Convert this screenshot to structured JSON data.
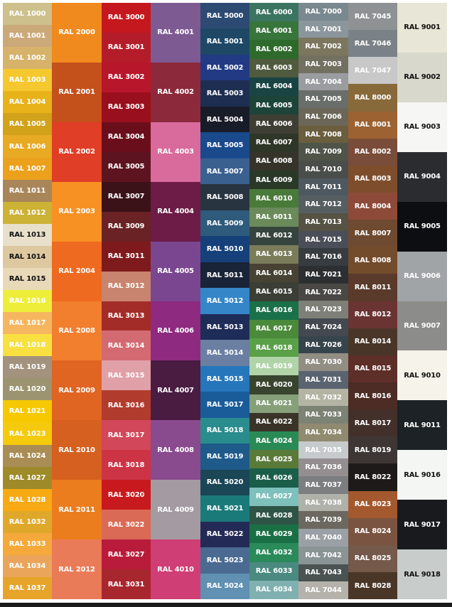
{
  "columns": [
    {
      "items": [
        {
          "label": "RAL 1000",
          "color": "#cdc08c"
        },
        {
          "label": "RAL 1001",
          "color": "#cca979"
        },
        {
          "label": "RAL 1002",
          "color": "#d6b26a"
        },
        {
          "label": "RAL 1003",
          "color": "#f4c82e"
        },
        {
          "label": "RAL 1004",
          "color": "#e8b21a"
        },
        {
          "label": "RAL 1005",
          "color": "#d1a21a"
        },
        {
          "label": "RAL 1006",
          "color": "#e8a923"
        },
        {
          "label": "RAL 1007",
          "color": "#eba11c"
        },
        {
          "label": "RAL 1011",
          "color": "#a9865a"
        },
        {
          "label": "RAL 1012",
          "color": "#ccb235"
        },
        {
          "label": "RAL 1013",
          "color": "#e8e0ca",
          "dark": true
        },
        {
          "label": "RAL 1014",
          "color": "#ddc8a0",
          "dark": true
        },
        {
          "label": "RAL 1015",
          "color": "#e8d9b8",
          "dark": true
        },
        {
          "label": "RAL 1016",
          "color": "#eeee3a"
        },
        {
          "label": "RAL 1017",
          "color": "#f6b660"
        },
        {
          "label": "RAL 1018",
          "color": "#f8e040"
        },
        {
          "label": "RAL 1019",
          "color": "#a3927d"
        },
        {
          "label": "RAL 1020",
          "color": "#9c9470"
        },
        {
          "label": "RAL 1021",
          "color": "#f5c800"
        },
        {
          "label": "RAL 1023",
          "color": "#f6ca0c"
        },
        {
          "label": "RAL 1024",
          "color": "#a98d55"
        },
        {
          "label": "RAL 1027",
          "color": "#9e8a28"
        },
        {
          "label": "RAL 1028",
          "color": "#f7aa14"
        },
        {
          "label": "RAL 1032",
          "color": "#e0a82a"
        },
        {
          "label": "RAL 1033",
          "color": "#f5a93a"
        },
        {
          "label": "RAL 1034",
          "color": "#eaa55a"
        },
        {
          "label": "RAL 1037",
          "color": "#e6a42a"
        }
      ]
    },
    {
      "items": [
        {
          "label": "RAL 2000",
          "color": "#f08a1e"
        },
        {
          "label": "RAL 2001",
          "color": "#c4501c"
        },
        {
          "label": "RAL 2002",
          "color": "#e03e26"
        },
        {
          "label": "RAL 2003",
          "color": "#f79124"
        },
        {
          "label": "RAL 2004",
          "color": "#ee6a20"
        },
        {
          "label": "RAL 2008",
          "color": "#f27f2e"
        },
        {
          "label": "RAL 2009",
          "color": "#e06422"
        },
        {
          "label": "RAL 2010",
          "color": "#d6601f"
        },
        {
          "label": "RAL 2011",
          "color": "#ec7d1e"
        },
        {
          "label": "RAL 2012",
          "color": "#ea7b58"
        }
      ]
    },
    {
      "items": [
        {
          "label": "RAL 3000",
          "color": "#c5181e"
        },
        {
          "label": "RAL 3001",
          "color": "#b51c2a"
        },
        {
          "label": "RAL 3002",
          "color": "#b8162a"
        },
        {
          "label": "RAL 3003",
          "color": "#9a0f1d"
        },
        {
          "label": "RAL 3004",
          "color": "#6a0e1c"
        },
        {
          "label": "RAL 3005",
          "color": "#5e1420"
        },
        {
          "label": "RAL 3007",
          "color": "#3a1218"
        },
        {
          "label": "RAL 3009",
          "color": "#6a2224"
        },
        {
          "label": "RAL 3011",
          "color": "#7e1a1c"
        },
        {
          "label": "RAL 3012",
          "color": "#c8846e"
        },
        {
          "label": "RAL 3013",
          "color": "#a42c28"
        },
        {
          "label": "RAL 3014",
          "color": "#d36a72"
        },
        {
          "label": "RAL 3015",
          "color": "#e0a0a8"
        },
        {
          "label": "RAL 3016",
          "color": "#b13c2e"
        },
        {
          "label": "RAL 3017",
          "color": "#d2475a"
        },
        {
          "label": "RAL 3018",
          "color": "#cc3446"
        },
        {
          "label": "RAL 3020",
          "color": "#c81a1e"
        },
        {
          "label": "RAL 3022",
          "color": "#da6a55"
        },
        {
          "label": "RAL 3027",
          "color": "#b81c3a"
        },
        {
          "label": "RAL 3031",
          "color": "#a8262e"
        }
      ]
    },
    {
      "items": [
        {
          "label": "RAL 4001",
          "color": "#7e5a92"
        },
        {
          "label": "RAL 4002",
          "color": "#8c2a3c"
        },
        {
          "label": "RAL 4003",
          "color": "#d86a9c"
        },
        {
          "label": "RAL 4004",
          "color": "#6c1c46"
        },
        {
          "label": "RAL 4005",
          "color": "#7a4690"
        },
        {
          "label": "RAL 4006",
          "color": "#8e2a80"
        },
        {
          "label": "RAL 4007",
          "color": "#4a1c42"
        },
        {
          "label": "RAL 4008",
          "color": "#8a4a8e"
        },
        {
          "label": "RAL 4009",
          "color": "#a39aa2"
        },
        {
          "label": "RAL 4010",
          "color": "#cf3e74"
        }
      ]
    },
    {
      "items": [
        {
          "label": "RAL 5000",
          "color": "#2c4a72"
        },
        {
          "label": "RAL 5001",
          "color": "#1e4866"
        },
        {
          "label": "RAL 5002",
          "color": "#223a84"
        },
        {
          "label": "RAL 5003",
          "color": "#1e2e52"
        },
        {
          "label": "RAL 5004",
          "color": "#181c28"
        },
        {
          "label": "RAL 5005",
          "color": "#1a4a8c"
        },
        {
          "label": "RAL 5007",
          "color": "#3a6090"
        },
        {
          "label": "RAL 5008",
          "color": "#283440"
        },
        {
          "label": "RAL 5009",
          "color": "#2e5a7c"
        },
        {
          "label": "RAL 5010",
          "color": "#16407a"
        },
        {
          "label": "RAL 5011",
          "color": "#1a2438"
        },
        {
          "label": "RAL 5012",
          "color": "#3486c8"
        },
        {
          "label": "RAL 5013",
          "color": "#1e2c58"
        },
        {
          "label": "RAL 5014",
          "color": "#6a7fa2"
        },
        {
          "label": "RAL 5015",
          "color": "#2676bc"
        },
        {
          "label": "RAL 5017",
          "color": "#1a5c9a"
        },
        {
          "label": "RAL 5018",
          "color": "#2a8c8c"
        },
        {
          "label": "RAL 5019",
          "color": "#1e5a8a"
        },
        {
          "label": "RAL 5020",
          "color": "#1a4656"
        },
        {
          "label": "RAL 5021",
          "color": "#1a7a7a"
        },
        {
          "label": "RAL 5022",
          "color": "#242a56"
        },
        {
          "label": "RAL 5023",
          "color": "#4a6a92"
        },
        {
          "label": "RAL 5024",
          "color": "#6090b2"
        }
      ]
    },
    {
      "items": [
        {
          "label": "RAL 6000",
          "color": "#3c7462"
        },
        {
          "label": "RAL 6001",
          "color": "#37753a"
        },
        {
          "label": "RAL 6002",
          "color": "#2e6a2c"
        },
        {
          "label": "RAL 6003",
          "color": "#505a3e"
        },
        {
          "label": "RAL 6004",
          "color": "#1a4444"
        },
        {
          "label": "RAL 6005",
          "color": "#1c4438"
        },
        {
          "label": "RAL 6006",
          "color": "#3e3e34"
        },
        {
          "label": "RAL 6007",
          "color": "#2e3628"
        },
        {
          "label": "RAL 6008",
          "color": "#36342a"
        },
        {
          "label": "RAL 6009",
          "color": "#2a3828"
        },
        {
          "label": "RAL 6010",
          "color": "#4a7a3a"
        },
        {
          "label": "RAL 6011",
          "color": "#6a8a5a"
        },
        {
          "label": "RAL 6012",
          "color": "#36443e"
        },
        {
          "label": "RAL 6013",
          "color": "#7a7c5a"
        },
        {
          "label": "RAL 6014",
          "color": "#474234"
        },
        {
          "label": "RAL 6015",
          "color": "#3a3e34"
        },
        {
          "label": "RAL 6016",
          "color": "#1a7048"
        },
        {
          "label": "RAL 6017",
          "color": "#4a8a3a"
        },
        {
          "label": "RAL 6018",
          "color": "#5aa048"
        },
        {
          "label": "RAL 6019",
          "color": "#b0d4a8"
        },
        {
          "label": "RAL 6020",
          "color": "#38442e"
        },
        {
          "label": "RAL 6021",
          "color": "#86a07a"
        },
        {
          "label": "RAL 6022",
          "color": "#3a3428"
        },
        {
          "label": "RAL 6024",
          "color": "#2a8a56"
        },
        {
          "label": "RAL 6025",
          "color": "#5a7a3a"
        },
        {
          "label": "RAL 6026",
          "color": "#1a5e4a"
        },
        {
          "label": "RAL 6027",
          "color": "#7ec0bc"
        },
        {
          "label": "RAL 6028",
          "color": "#2e5446"
        },
        {
          "label": "RAL 6029",
          "color": "#1a7044"
        },
        {
          "label": "RAL 6032",
          "color": "#2a8a5a"
        },
        {
          "label": "RAL 6033",
          "color": "#4a8a80"
        },
        {
          "label": "RAL 6034",
          "color": "#80b0b0"
        }
      ]
    },
    {
      "items": [
        {
          "label": "RAL 7000",
          "color": "#7a8890"
        },
        {
          "label": "RAL 7001",
          "color": "#8a969c"
        },
        {
          "label": "RAL 7002",
          "color": "#7c765e"
        },
        {
          "label": "RAL 7003",
          "color": "#727060"
        },
        {
          "label": "RAL 7004",
          "color": "#9a9ca0"
        },
        {
          "label": "RAL 7005",
          "color": "#6a6e6a"
        },
        {
          "label": "RAL 7006",
          "color": "#6c6658"
        },
        {
          "label": "RAL 7008",
          "color": "#6a5e3e"
        },
        {
          "label": "RAL 7009",
          "color": "#4e5448"
        },
        {
          "label": "RAL 7010",
          "color": "#4a4e4a"
        },
        {
          "label": "RAL 7011",
          "color": "#4e5860"
        },
        {
          "label": "RAL 7012",
          "color": "#565e62"
        },
        {
          "label": "RAL 7013",
          "color": "#565244"
        },
        {
          "label": "RAL 7015",
          "color": "#4a4e58"
        },
        {
          "label": "RAL 7016",
          "color": "#363c40"
        },
        {
          "label": "RAL 7021",
          "color": "#2c2f32"
        },
        {
          "label": "RAL 7022",
          "color": "#4a4844"
        },
        {
          "label": "RAL 7023",
          "color": "#7e8078"
        },
        {
          "label": "RAL 7024",
          "color": "#444850"
        },
        {
          "label": "RAL 7026",
          "color": "#36454c"
        },
        {
          "label": "RAL 7030",
          "color": "#928e84"
        },
        {
          "label": "RAL 7031",
          "color": "#5a6470"
        },
        {
          "label": "RAL 7032",
          "color": "#b4b4a4"
        },
        {
          "label": "RAL 7033",
          "color": "#7c8274"
        },
        {
          "label": "RAL 7034",
          "color": "#908a70"
        },
        {
          "label": "RAL 7035",
          "color": "#c6cacc"
        },
        {
          "label": "RAL 7036",
          "color": "#948e90"
        },
        {
          "label": "RAL 7037",
          "color": "#7c7e80"
        },
        {
          "label": "RAL 7038",
          "color": "#b0b2aa"
        },
        {
          "label": "RAL 7039",
          "color": "#6c6860"
        },
        {
          "label": "RAL 7040",
          "color": "#9aa0a6"
        },
        {
          "label": "RAL 7042",
          "color": "#8a9494"
        },
        {
          "label": "RAL 7043",
          "color": "#4a5252"
        },
        {
          "label": "RAL 7044",
          "color": "#b4b2aa"
        }
      ]
    },
    {
      "items": [
        {
          "label": "RAL 7045",
          "color": "#8e9294"
        },
        {
          "label": "RAL 7046",
          "color": "#7a8288"
        },
        {
          "label": "RAL 7047",
          "color": "#c8c8c8"
        },
        {
          "label": "RAL 8000",
          "color": "#886a3a"
        },
        {
          "label": "RAL 8001",
          "color": "#9c6232"
        },
        {
          "label": "RAL 8002",
          "color": "#7a4c3a"
        },
        {
          "label": "RAL 8003",
          "color": "#7e4e2c"
        },
        {
          "label": "RAL 8004",
          "color": "#8e4a38"
        },
        {
          "label": "RAL 8007",
          "color": "#6e4a30"
        },
        {
          "label": "RAL 8008",
          "color": "#734c2c"
        },
        {
          "label": "RAL 8011",
          "color": "#5a3a2a"
        },
        {
          "label": "RAL 8012",
          "color": "#6a3432"
        },
        {
          "label": "RAL 8014",
          "color": "#4a3628"
        },
        {
          "label": "RAL 8015",
          "color": "#5e2e28"
        },
        {
          "label": "RAL 8016",
          "color": "#4c2c24"
        },
        {
          "label": "RAL 8017",
          "color": "#44302a"
        },
        {
          "label": "RAL 8019",
          "color": "#3e3634"
        },
        {
          "label": "RAL 8022",
          "color": "#1e1a1a"
        },
        {
          "label": "RAL 8023",
          "color": "#a4582e"
        },
        {
          "label": "RAL 8024",
          "color": "#7a5440"
        },
        {
          "label": "RAL 8025",
          "color": "#75594a"
        },
        {
          "label": "RAL 8028",
          "color": "#4a3626"
        }
      ]
    },
    {
      "items": [
        {
          "label": "RAL 9001",
          "color": "#e8e6d6",
          "dark": true
        },
        {
          "label": "RAL 9002",
          "color": "#d8d8cc",
          "dark": true
        },
        {
          "label": "RAL 9003",
          "color": "#f6f6f4",
          "dark": true
        },
        {
          "label": "RAL 9004",
          "color": "#2a2c30"
        },
        {
          "label": "RAL 9005",
          "color": "#0c0e12"
        },
        {
          "label": "RAL 9006",
          "color": "#a0a4a6"
        },
        {
          "label": "RAL 9007",
          "color": "#8c8c8a"
        },
        {
          "label": "RAL 9010",
          "color": "#f6f4ea",
          "dark": true
        },
        {
          "label": "RAL 9011",
          "color": "#1c2226"
        },
        {
          "label": "RAL 9016",
          "color": "#f4f6f4",
          "dark": true
        },
        {
          "label": "RAL 9017",
          "color": "#181a1e"
        },
        {
          "label": "RAL 9018",
          "color": "#c8ccca",
          "dark": true
        }
      ]
    }
  ]
}
